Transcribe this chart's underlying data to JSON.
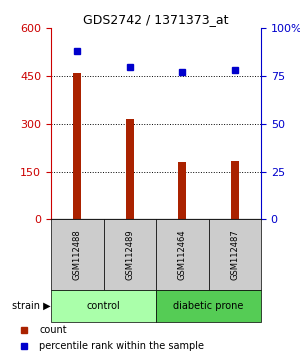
{
  "title": "GDS2742 / 1371373_at",
  "samples": [
    "GSM112488",
    "GSM112489",
    "GSM112464",
    "GSM112487"
  ],
  "counts": [
    460,
    315,
    180,
    185
  ],
  "percentiles": [
    88,
    80,
    77,
    78
  ],
  "groups": [
    {
      "label": "control",
      "indices": [
        0,
        1
      ],
      "color": "#aaffaa"
    },
    {
      "label": "diabetic prone",
      "indices": [
        2,
        3
      ],
      "color": "#55cc55"
    }
  ],
  "bar_color": "#aa2200",
  "point_color": "#0000cc",
  "left_ylim": [
    0,
    600
  ],
  "left_yticks": [
    0,
    150,
    300,
    450,
    600
  ],
  "right_ylim": [
    0,
    100
  ],
  "right_yticks": [
    0,
    25,
    50,
    75,
    100
  ],
  "right_yticklabels": [
    "0",
    "25",
    "50",
    "75",
    "100%"
  ],
  "left_tick_color": "#cc0000",
  "right_tick_color": "#0000cc",
  "grid_color": "#000000",
  "background_color": "#ffffff",
  "label_area_color": "#cccccc",
  "strain_label": "strain",
  "legend_count_label": "count",
  "legend_pct_label": "percentile rank within the sample"
}
